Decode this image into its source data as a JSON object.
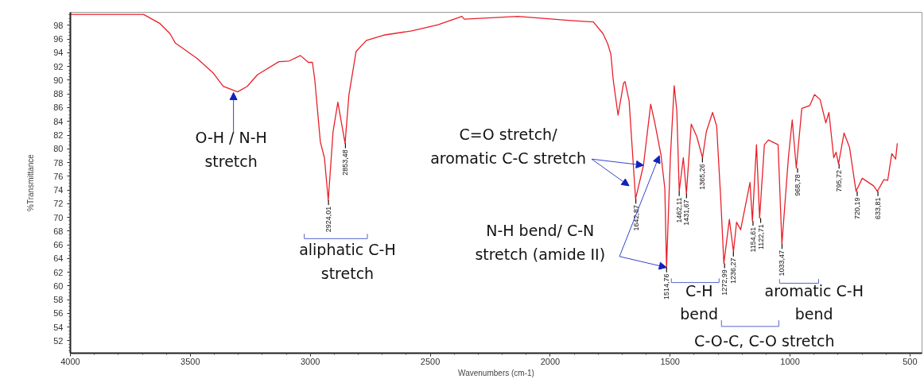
{
  "chart_data": {
    "type": "line",
    "xlabel": "Wavenumbers (cm-1)",
    "ylabel": "%Transmittance",
    "x": [
      4000,
      3695,
      3628,
      3585,
      3562,
      3473,
      3406,
      3363,
      3303,
      3263,
      3220,
      3131,
      3088,
      3041,
      3008,
      2991,
      2981,
      2958,
      2941,
      2925,
      2905,
      2885,
      2855,
      2839,
      2809,
      2766,
      2689,
      2577,
      2467,
      2368,
      2358,
      2135,
      1913,
      1820,
      1780,
      1760,
      1747,
      1737,
      1717,
      1694,
      1688,
      1671,
      1644,
      1611,
      1581,
      1565,
      1538,
      1522,
      1515,
      1499,
      1483,
      1472,
      1462,
      1445,
      1432,
      1412,
      1389,
      1365,
      1349,
      1323,
      1306,
      1289,
      1276,
      1253,
      1236,
      1223,
      1206,
      1167,
      1157,
      1140,
      1127,
      1107,
      1090,
      1050,
      1034,
      1007,
      991,
      974,
      951,
      918,
      898,
      875,
      851,
      838,
      818,
      808,
      798,
      775,
      752,
      725,
      699,
      652,
      636,
      609,
      593,
      576,
      560,
      553
    ],
    "series": [
      {
        "color": "#e8202a",
        "values": [
          99.6,
          99.6,
          98.3,
          96.8,
          95.4,
          93.2,
          91.1,
          89.1,
          88.3,
          89.1,
          90.8,
          92.7,
          92.8,
          93.6,
          92.6,
          92.6,
          90.0,
          81.0,
          78.7,
          72.5,
          82.5,
          86.8,
          80.8,
          87.8,
          94.2,
          95.8,
          96.6,
          97.2,
          98.1,
          99.3,
          98.9,
          99.3,
          98.7,
          98.5,
          96.8,
          95.3,
          93.8,
          90.0,
          84.9,
          89.6,
          89.8,
          87.0,
          72.7,
          77.6,
          86.5,
          84.0,
          79.1,
          74.2,
          62.7,
          78.7,
          89.2,
          85.5,
          73.8,
          78.7,
          73.5,
          83.6,
          81.8,
          78.7,
          82.5,
          85.3,
          83.3,
          72.7,
          63.3,
          69.7,
          65.0,
          69.3,
          68.2,
          75.1,
          69.5,
          80.6,
          69.9,
          80.6,
          81.3,
          80.6,
          66.1,
          78.7,
          84.2,
          77.2,
          85.9,
          86.3,
          87.9,
          87.2,
          83.8,
          85.3,
          78.7,
          79.5,
          77.8,
          82.3,
          80.2,
          73.8,
          75.7,
          74.6,
          73.8,
          75.5,
          75.4,
          79.3,
          78.5,
          80.8
        ]
      }
    ],
    "xlim": [
      4000,
      450
    ],
    "ylim": [
      50.2,
      99.9
    ],
    "xticks": [
      4000,
      3500,
      3000,
      2500,
      2000,
      1500,
      1000,
      500
    ],
    "yticks": [
      52,
      54,
      56,
      58,
      60,
      62,
      64,
      66,
      68,
      70,
      72,
      74,
      76,
      78,
      80,
      82,
      84,
      86,
      88,
      90,
      92,
      94,
      96,
      98
    ],
    "grid": false,
    "marker": "none",
    "line_style": "solid",
    "annotations": [
      {
        "text": "2924,01",
        "x": 2924.01,
        "y": 72.5
      },
      {
        "text": "2853,48",
        "x": 2853.48,
        "y": 80.8
      },
      {
        "text": "1642,87",
        "x": 1642.87,
        "y": 72.7
      },
      {
        "text": "1514,76",
        "x": 1514.76,
        "y": 62.7
      },
      {
        "text": "1462,11",
        "x": 1462.11,
        "y": 73.8
      },
      {
        "text": "1431,67",
        "x": 1431.67,
        "y": 73.5
      },
      {
        "text": "1365,26",
        "x": 1365.26,
        "y": 78.7
      },
      {
        "text": "1272,99",
        "x": 1272.99,
        "y": 63.3
      },
      {
        "text": "1236,27",
        "x": 1236.27,
        "y": 65.0
      },
      {
        "text": "1154,61",
        "x": 1154.61,
        "y": 69.5
      },
      {
        "text": "1122,71",
        "x": 1122.71,
        "y": 69.9
      },
      {
        "text": "1033,47",
        "x": 1033.47,
        "y": 66.1
      },
      {
        "text": "968,78",
        "x": 968.78,
        "y": 77.2
      },
      {
        "text": "795,72",
        "x": 795.72,
        "y": 77.8
      },
      {
        "text": "720,19",
        "x": 720.19,
        "y": 73.8
      },
      {
        "text": "633,81",
        "x": 633.81,
        "y": 73.8
      },
      {
        "text": "O-H / N-H\nstretch",
        "x": 3320,
        "y": 88.2
      },
      "aliphatic C-H\nstretch",
      {
        "text": "C=O stretch/\naromatic C-C stretch",
        "x": 1611,
        "y": 77.6
      },
      {
        "text": "N-H bend/ C-N\nstretch (amide II)",
        "x": 1515,
        "y": 62.7
      },
      "C-H\nbend",
      "aromatic C-H\nbend",
      "C-O-C, C-O stretch"
    ]
  }
}
